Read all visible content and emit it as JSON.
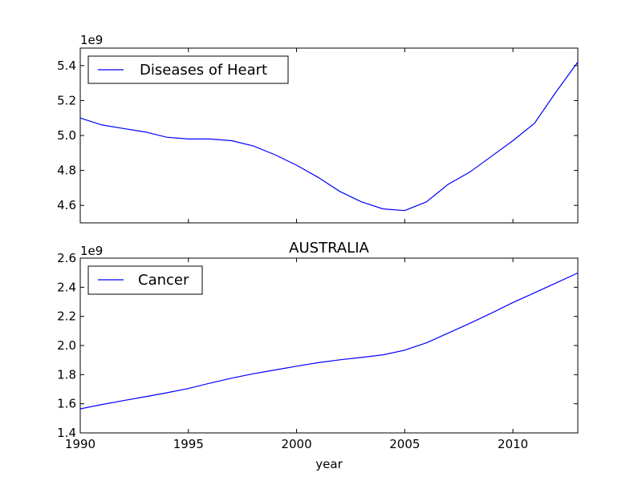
{
  "figure": {
    "xlabel": "year",
    "series_color": "#0000ff"
  },
  "chart_data": [
    {
      "type": "line",
      "title": "",
      "xlabel": "",
      "ylabel": "",
      "offset_label": "1e9",
      "x_tick_labels_visible": false,
      "xlim": [
        1990,
        2013
      ],
      "ylim": [
        4.5,
        5.5
      ],
      "y_ticks": [
        4.6,
        4.8,
        5.0,
        5.2,
        5.4
      ],
      "y_tick_labels": [
        "4.6",
        "4.8",
        "5.0",
        "5.2",
        "5.4"
      ],
      "x_ticks": [
        1990,
        1995,
        2000,
        2005,
        2010
      ],
      "legend": {
        "placement": "upper-left",
        "entries": [
          "Diseases of Heart"
        ]
      },
      "grid": false,
      "series": [
        {
          "name": "Diseases of Heart",
          "color": "#0000ff",
          "x": [
            1990,
            1991,
            1992,
            1993,
            1994,
            1995,
            1996,
            1997,
            1998,
            1999,
            2000,
            2001,
            2002,
            2003,
            2004,
            2005,
            2006,
            2007,
            2008,
            2009,
            2010,
            2011,
            2012,
            2013
          ],
          "values": [
            5.1,
            5.06,
            5.04,
            5.02,
            4.99,
            4.98,
            4.98,
            4.97,
            4.94,
            4.89,
            4.83,
            4.76,
            4.68,
            4.62,
            4.58,
            4.57,
            4.62,
            4.72,
            4.79,
            4.88,
            4.97,
            5.07,
            5.25,
            5.42
          ]
        }
      ]
    },
    {
      "type": "line",
      "title": "AUSTRALIA",
      "xlabel": "year",
      "ylabel": "",
      "offset_label": "1e9",
      "x_tick_labels_visible": true,
      "xlim": [
        1990,
        2013
      ],
      "ylim": [
        1.4,
        2.6
      ],
      "y_ticks": [
        1.4,
        1.6,
        1.8,
        2.0,
        2.2,
        2.4,
        2.6
      ],
      "y_tick_labels": [
        "1.4",
        "1.6",
        "1.8",
        "2.0",
        "2.2",
        "2.4",
        "2.6"
      ],
      "x_ticks": [
        1990,
        1995,
        2000,
        2005,
        2010
      ],
      "x_tick_labels": [
        "1990",
        "1995",
        "2000",
        "2005",
        "2010"
      ],
      "legend": {
        "placement": "upper-left",
        "entries": [
          "Cancer"
        ]
      },
      "grid": false,
      "series": [
        {
          "name": "Cancer",
          "color": "#0000ff",
          "x": [
            1990,
            1991,
            1992,
            1993,
            1994,
            1995,
            1996,
            1997,
            1998,
            1999,
            2000,
            2001,
            2002,
            2003,
            2004,
            2005,
            2006,
            2007,
            2008,
            2009,
            2010,
            2011,
            2012,
            2013
          ],
          "values": [
            1.565,
            1.595,
            1.622,
            1.648,
            1.675,
            1.705,
            1.742,
            1.776,
            1.806,
            1.832,
            1.858,
            1.882,
            1.902,
            1.918,
            1.936,
            1.968,
            2.018,
            2.085,
            2.152,
            2.222,
            2.295,
            2.362,
            2.43,
            2.498
          ]
        }
      ]
    }
  ]
}
